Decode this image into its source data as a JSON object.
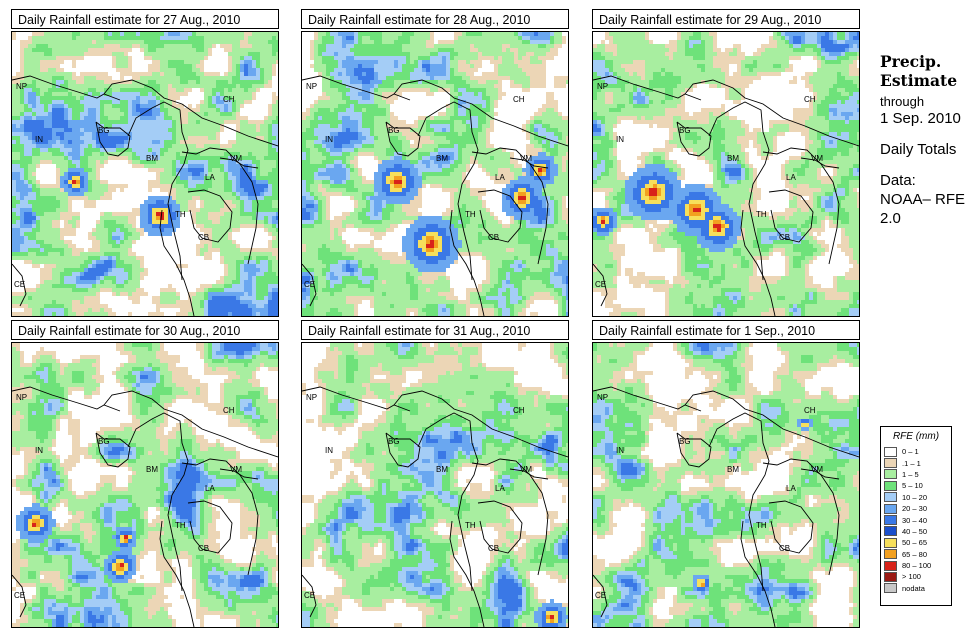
{
  "panels": [
    {
      "title": "Daily Rainfall estimate for  27 Aug., 2010",
      "seed": 27,
      "hot": [
        [
          0.55,
          0.64,
          9
        ],
        [
          0.23,
          0.52,
          6
        ]
      ]
    },
    {
      "title": "Daily Rainfall estimate for  28 Aug., 2010",
      "seed": 28,
      "hot": [
        [
          0.48,
          0.74,
          12
        ],
        [
          0.35,
          0.52,
          10
        ],
        [
          0.82,
          0.58,
          9
        ],
        [
          0.89,
          0.48,
          7
        ]
      ]
    },
    {
      "title": "Daily Rainfall estimate for  29 Aug., 2010",
      "seed": 29,
      "hot": [
        [
          0.22,
          0.56,
          12
        ],
        [
          0.38,
          0.62,
          11
        ],
        [
          0.46,
          0.68,
          10
        ],
        [
          0.03,
          0.66,
          6
        ]
      ]
    },
    {
      "title": "Daily Rainfall estimate for  30 Aug., 2010",
      "seed": 30,
      "hot": [
        [
          0.08,
          0.63,
          8
        ],
        [
          0.4,
          0.78,
          7
        ],
        [
          0.42,
          0.68,
          5
        ]
      ]
    },
    {
      "title": "Daily Rainfall estimate for  31 Aug., 2010",
      "seed": 31,
      "hot": [
        [
          0.93,
          0.96,
          7
        ]
      ]
    },
    {
      "title": "Daily Rainfall estimate for  1 Sep., 2010",
      "seed": 1,
      "hot": [
        [
          0.4,
          0.84,
          4
        ],
        [
          0.79,
          0.28,
          3
        ]
      ]
    }
  ],
  "country_labels": [
    "NP",
    "IN",
    "BG",
    "BM",
    "CH",
    "VM",
    "LA",
    "TH",
    "CB",
    "CE"
  ],
  "side": {
    "title": "Precip. Estimate",
    "through": "through",
    "date": "1 Sep. 2010",
    "daily": "Daily Totals",
    "source": "Data: NOAA– RFE 2.0"
  },
  "legend": {
    "title": "RFE (mm)",
    "entries": [
      {
        "label": "0 – 1",
        "color": "#ffffff"
      },
      {
        "label": ".1 – 1",
        "color": "#ecd6b6"
      },
      {
        "label": "1 – 5",
        "color": "#a8eea0"
      },
      {
        "label": "5 – 10",
        "color": "#6ee27a"
      },
      {
        "label": "10 – 20",
        "color": "#a4cdf6"
      },
      {
        "label": "20 – 30",
        "color": "#6aa7f0"
      },
      {
        "label": "30 – 40",
        "color": "#3a78e6"
      },
      {
        "label": "40 – 50",
        "color": "#1a4fcc"
      },
      {
        "label": "50 – 65",
        "color": "#f6df5c"
      },
      {
        "label": "65 – 80",
        "color": "#f2a020"
      },
      {
        "label": "80 – 100",
        "color": "#d8231a"
      },
      {
        "label": "> 100",
        "color": "#9a1a14"
      },
      {
        "label": "nodata",
        "color": "#c8c8c8"
      }
    ]
  }
}
